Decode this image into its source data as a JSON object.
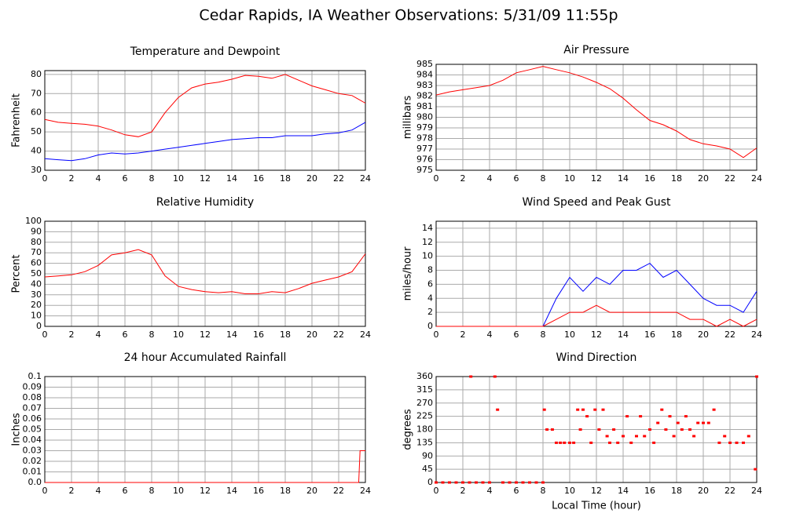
{
  "title": "Cedar Rapids, IA Weather Observations: 5/31/09 11:55p",
  "chart_data": [
    {
      "type": "line",
      "title": "Temperature and Dewpoint",
      "ylabel": "Fahrenheit",
      "x": [
        0,
        1,
        2,
        3,
        4,
        5,
        6,
        7,
        8,
        9,
        10,
        11,
        12,
        13,
        14,
        15,
        16,
        17,
        18,
        19,
        20,
        21,
        22,
        23,
        24
      ],
      "series": [
        {
          "color": "#ff0000",
          "values": [
            56.5,
            55,
            54.5,
            54,
            53,
            51,
            48.5,
            47.5,
            50,
            60,
            68,
            73,
            75,
            76,
            77.5,
            79.5,
            79,
            78,
            80,
            77,
            74,
            72,
            70,
            69,
            65
          ]
        },
        {
          "color": "#0000ff",
          "values": [
            36,
            35.5,
            35,
            36,
            38,
            39,
            38.5,
            39,
            40,
            41,
            42,
            43,
            44,
            45,
            46,
            46.5,
            47,
            47,
            48,
            48,
            48,
            49,
            49.5,
            51,
            55
          ]
        }
      ],
      "xlim": [
        0,
        24
      ],
      "xticks": [
        0,
        2,
        4,
        6,
        8,
        10,
        12,
        14,
        16,
        18,
        20,
        22,
        24
      ],
      "ylim": [
        30,
        82
      ],
      "yticks": [
        30,
        40,
        50,
        60,
        70,
        80
      ],
      "grid": true
    },
    {
      "type": "line",
      "title": "Air Pressure",
      "ylabel": "millibars",
      "x": [
        0,
        1,
        2,
        3,
        4,
        5,
        6,
        7,
        8,
        9,
        10,
        11,
        12,
        13,
        14,
        15,
        16,
        17,
        18,
        19,
        20,
        21,
        22,
        23,
        24
      ],
      "series": [
        {
          "color": "#ff0000",
          "values": [
            982.1,
            982.4,
            982.6,
            982.8,
            983,
            983.5,
            984.2,
            984.5,
            984.8,
            984.5,
            984.2,
            983.8,
            983.3,
            982.7,
            981.8,
            980.7,
            979.7,
            979.3,
            978.7,
            977.9,
            977.5,
            977.3,
            977,
            976.2,
            977.1
          ]
        }
      ],
      "xlim": [
        0,
        24
      ],
      "xticks": [
        0,
        2,
        4,
        6,
        8,
        10,
        12,
        14,
        16,
        18,
        20,
        22,
        24
      ],
      "ylim": [
        975,
        985
      ],
      "yticks": [
        975,
        976,
        977,
        978,
        979,
        980,
        981,
        982,
        983,
        984,
        985
      ],
      "grid": true
    },
    {
      "type": "line",
      "title": "Relative Humidity",
      "ylabel": "Percent",
      "x": [
        0,
        1,
        2,
        3,
        4,
        5,
        6,
        7,
        8,
        9,
        10,
        11,
        12,
        13,
        14,
        15,
        16,
        17,
        18,
        19,
        20,
        21,
        22,
        23,
        24
      ],
      "series": [
        {
          "color": "#ff0000",
          "values": [
            47,
            48,
            49,
            52,
            58,
            68,
            70,
            73,
            68,
            48,
            38,
            35,
            33,
            32,
            33,
            31,
            31,
            33,
            32,
            36,
            41,
            44,
            47,
            52,
            69
          ]
        }
      ],
      "xlim": [
        0,
        24
      ],
      "xticks": [
        0,
        2,
        4,
        6,
        8,
        10,
        12,
        14,
        16,
        18,
        20,
        22,
        24
      ],
      "ylim": [
        0,
        100
      ],
      "yticks": [
        0,
        10,
        20,
        30,
        40,
        50,
        60,
        70,
        80,
        90,
        100
      ],
      "grid": true
    },
    {
      "type": "line",
      "title": "Wind Speed and Peak Gust",
      "ylabel": "miles/hour",
      "x": [
        0,
        1,
        2,
        3,
        4,
        5,
        6,
        7,
        8,
        9,
        10,
        11,
        12,
        13,
        14,
        15,
        16,
        17,
        18,
        19,
        20,
        21,
        22,
        23,
        24
      ],
      "series": [
        {
          "color": "#0000ff",
          "values": [
            0,
            0,
            0,
            0,
            0,
            0,
            0,
            0,
            0,
            4,
            7,
            5,
            7,
            6,
            8,
            8,
            9,
            7,
            8,
            6,
            4,
            3,
            3,
            2,
            5
          ]
        },
        {
          "color": "#ff0000",
          "values": [
            0,
            0,
            0,
            0,
            0,
            0,
            0,
            0,
            0,
            1,
            2,
            2,
            3,
            2,
            2,
            2,
            2,
            2,
            2,
            1,
            1,
            0,
            1,
            0,
            1
          ]
        }
      ],
      "xlim": [
        0,
        24
      ],
      "xticks": [
        0,
        2,
        4,
        6,
        8,
        10,
        12,
        14,
        16,
        18,
        20,
        22,
        24
      ],
      "ylim": [
        0,
        15
      ],
      "yticks": [
        0,
        2,
        4,
        6,
        8,
        10,
        12,
        14
      ],
      "grid": true
    },
    {
      "type": "line",
      "title": "24 hour Accumulated Rainfall",
      "ylabel": "Inches",
      "x": [
        0,
        23.5,
        23.6,
        24
      ],
      "series": [
        {
          "color": "#ff0000",
          "values": [
            0,
            0,
            0.03,
            0.03
          ]
        }
      ],
      "xlim": [
        0,
        24
      ],
      "xticks": [
        0,
        2,
        4,
        6,
        8,
        10,
        12,
        14,
        16,
        18,
        20,
        22,
        24
      ],
      "ylim": [
        0,
        0.1
      ],
      "yticks": [
        {
          "value": 0,
          "label": "0.0"
        },
        0.01,
        0.02,
        0.03,
        0.04,
        0.05,
        0.06,
        0.07,
        0.08,
        0.09,
        0.1
      ],
      "grid": true
    },
    {
      "type": "scatter",
      "title": "Wind Direction",
      "ylabel": "degrees",
      "xlabel": "Local Time (hour)",
      "x": [
        0,
        0.5,
        1,
        1.5,
        2,
        2.5,
        2.6,
        3,
        3.5,
        4,
        4.4,
        4.6,
        5,
        5.5,
        6,
        6.5,
        7,
        7.5,
        8,
        8.1,
        8.3,
        8.7,
        9,
        9.3,
        9.6,
        10,
        10.3,
        10.6,
        10.8,
        11,
        11.3,
        11.6,
        11.9,
        12.2,
        12.5,
        12.8,
        13,
        13.3,
        13.6,
        14,
        14.3,
        14.6,
        15,
        15.3,
        15.6,
        16,
        16.3,
        16.6,
        16.9,
        17.2,
        17.5,
        17.8,
        18.1,
        18.4,
        18.7,
        19,
        19.3,
        19.6,
        20,
        20.4,
        20.8,
        21.2,
        21.6,
        22,
        22.5,
        23,
        23.4,
        23.9,
        24
      ],
      "series": [
        {
          "color": "#ff0000",
          "values": [
            0,
            0,
            0,
            0,
            0,
            0,
            360,
            0,
            0,
            0,
            360,
            247.5,
            0,
            0,
            0,
            0,
            0,
            0,
            0,
            247.5,
            180,
            180,
            135,
            135,
            135,
            135,
            135,
            247.5,
            180,
            247.5,
            225,
            135,
            247.5,
            180,
            247.5,
            157.5,
            135,
            180,
            135,
            157.5,
            225,
            135,
            157.5,
            225,
            157.5,
            180,
            135,
            202.5,
            247.5,
            180,
            225,
            157.5,
            202.5,
            180,
            225,
            180,
            157.5,
            202.5,
            202.5,
            202.5,
            247.5,
            135,
            157.5,
            135,
            135,
            135,
            157.5,
            45,
            360
          ]
        }
      ],
      "xlim": [
        0,
        24
      ],
      "xticks": [
        0,
        2,
        4,
        6,
        8,
        10,
        12,
        14,
        16,
        18,
        20,
        22,
        24
      ],
      "ylim": [
        0,
        360
      ],
      "yticks": [
        0,
        45,
        90,
        135,
        180,
        225,
        270,
        315,
        360
      ],
      "grid": true
    }
  ]
}
